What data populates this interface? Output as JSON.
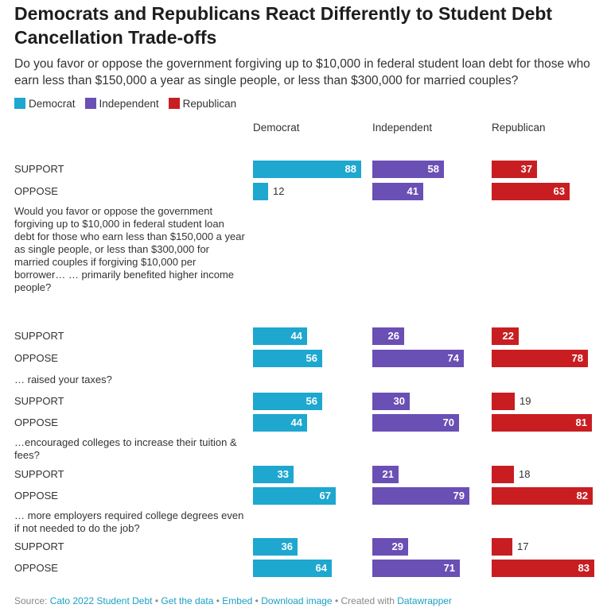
{
  "title": "Democrats and Republicans React Differently to Student Debt Cancellation Trade-offs",
  "subtitle": "Do you favor or oppose the government forgiving up to $10,000 in federal student loan debt for those who earn less than $150,000 a year as single people, or less than $300,000 for married couples?",
  "legend": [
    "Democrat",
    "Independent",
    "Republican"
  ],
  "colors": {
    "Democrat": "#1ea7cf",
    "Independent": "#6a4fb5",
    "Republican": "#c81e22"
  },
  "footer": {
    "source_label": "Source:",
    "source_link": "Cato 2022 Student Debt",
    "get_data": "Get the data",
    "embed": "Embed",
    "download": "Download image",
    "created_with": "Created with",
    "tool": "Datawrapper",
    "separator": "•"
  },
  "chart_data": {
    "type": "bar",
    "series_names": [
      "Democrat",
      "Independent",
      "Republican"
    ],
    "groups": [
      {
        "question": "",
        "rows": [
          {
            "label": "SUPPORT",
            "values": [
              88,
              58,
              37
            ]
          },
          {
            "label": "OPPOSE",
            "values": [
              12,
              41,
              63
            ]
          }
        ]
      },
      {
        "question": "Would you favor or oppose the government forgiving up to $10,000 in federal student loan debt for those who earn less than $150,000 a year as single people, or less than $300,000 for married couples if forgiving $10,000 per borrower… … primarily benefited higher income people?",
        "rows": [
          {
            "label": "SUPPORT",
            "values": [
              44,
              26,
              22
            ]
          },
          {
            "label": "OPPOSE",
            "values": [
              56,
              74,
              78
            ]
          }
        ]
      },
      {
        "question": "… raised your taxes?",
        "rows": [
          {
            "label": "SUPPORT",
            "values": [
              56,
              30,
              19
            ]
          },
          {
            "label": "OPPOSE",
            "values": [
              44,
              70,
              81
            ]
          }
        ]
      },
      {
        "question": "…encouraged colleges to increase their tuition & fees?",
        "rows": [
          {
            "label": "SUPPORT",
            "values": [
              33,
              21,
              18
            ]
          },
          {
            "label": "OPPOSE",
            "values": [
              67,
              79,
              82
            ]
          }
        ]
      },
      {
        "question": "… more employers required college degrees even if not needed to do the job?",
        "rows": [
          {
            "label": "SUPPORT",
            "values": [
              36,
              29,
              17
            ]
          },
          {
            "label": "OPPOSE",
            "values": [
              64,
              71,
              83
            ]
          }
        ]
      }
    ],
    "xlim": [
      0,
      100
    ]
  }
}
